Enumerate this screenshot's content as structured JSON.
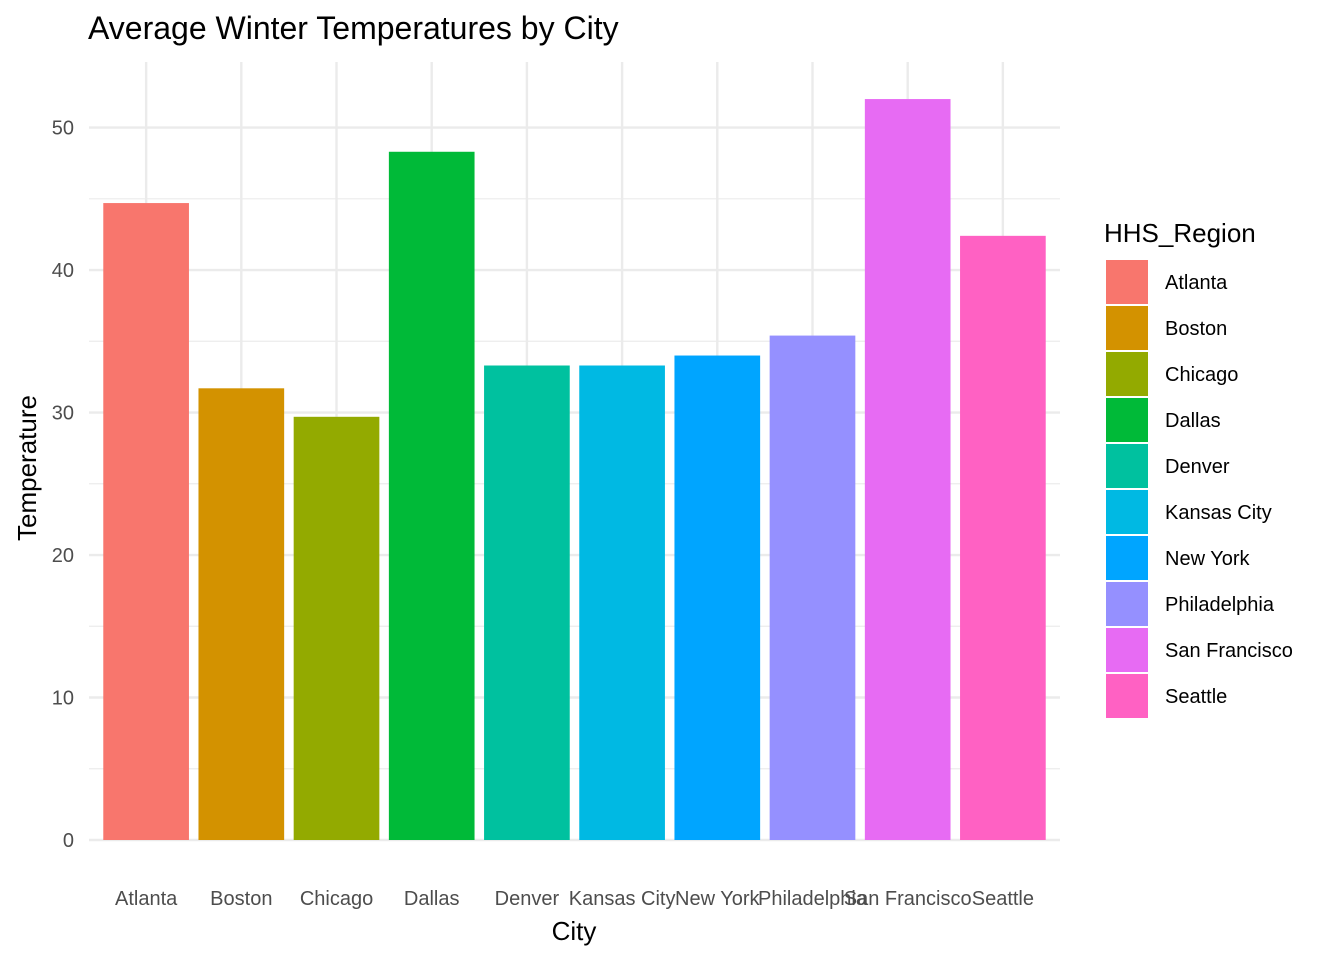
{
  "chart_data": {
    "type": "bar",
    "title": "Average Winter Temperatures by City",
    "xlabel": "City",
    "ylabel": "Temperature",
    "categories": [
      "Atlanta",
      "Boston",
      "Chicago",
      "Dallas",
      "Denver",
      "Kansas City",
      "New York",
      "Philadelphia",
      "San Francisco",
      "Seattle"
    ],
    "values": [
      44.7,
      31.7,
      29.7,
      48.3,
      33.3,
      33.3,
      34.0,
      35.4,
      52.0,
      42.4
    ],
    "colors": [
      "#F8766D",
      "#D39200",
      "#93AA00",
      "#00BA38",
      "#00C19F",
      "#00B9E3",
      "#00A5FF",
      "#9590FF",
      "#E76BF3",
      "#FF61C3"
    ],
    "y_ticks": [
      0,
      10,
      20,
      30,
      40,
      50
    ],
    "ylim": [
      0,
      54.6
    ],
    "grid": true,
    "legend": {
      "title": "HHS_Region",
      "position": "right",
      "entries": [
        "Atlanta",
        "Boston",
        "Chicago",
        "Dallas",
        "Denver",
        "Kansas City",
        "New York",
        "Philadelphia",
        "San Francisco",
        "Seattle"
      ]
    }
  }
}
